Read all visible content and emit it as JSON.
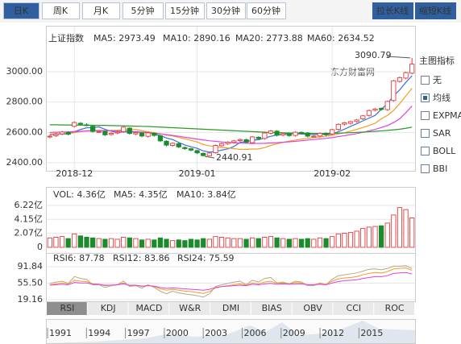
{
  "period_tabs": [
    "日K",
    "周K",
    "月K",
    "5分钟",
    "15分钟",
    "30分钟",
    "60分钟"
  ],
  "zoom_buttons": [
    "拉长K线",
    "缩短K线"
  ],
  "watermark": "东方财富网",
  "indicator_panel": {
    "title": "主图指标",
    "options": [
      "无",
      "均线",
      "EXPMA",
      "SAR",
      "BOLL",
      "BBI"
    ],
    "checked": [
      false,
      true,
      false,
      false,
      false,
      false
    ]
  },
  "indicator_tabs": [
    "RSI",
    "KDJ",
    "MACD",
    "W&R",
    "DMI",
    "BIAS",
    "OBV",
    "CCI",
    "ROC"
  ],
  "timeline_years": [
    "1991",
    "1994",
    "1997",
    "2000",
    "2003",
    "2006",
    "2009",
    "2012",
    "2015"
  ],
  "chart_data": [
    {
      "type": "candlestick",
      "title": "上证指数",
      "categories": [
        null,
        null,
        null,
        null,
        "2018-12",
        null,
        null,
        null,
        null,
        null,
        null,
        null,
        null,
        null,
        null,
        null,
        null,
        null,
        null,
        null,
        null,
        null,
        null,
        null,
        "2019-01",
        null,
        null,
        null,
        null,
        null,
        null,
        null,
        null,
        null,
        null,
        null,
        null,
        null,
        null,
        null,
        null,
        null,
        null,
        null,
        null,
        null,
        "2019-02",
        null,
        null,
        null,
        null,
        null,
        null,
        null,
        null,
        null,
        null,
        null,
        null,
        null
      ],
      "open": [
        2570,
        2578,
        2590,
        2600,
        2640,
        2660,
        2650,
        2640,
        2600,
        2606,
        2586,
        2596,
        2605,
        2628,
        2590,
        2596,
        2574,
        2595,
        2578,
        2542,
        2514,
        2526,
        2500,
        2492,
        2480,
        2462,
        2446,
        2466,
        2512,
        2526,
        2534,
        2546,
        2552,
        2532,
        2568,
        2560,
        2594,
        2608,
        2582,
        2590,
        2580,
        2600,
        2596,
        2572,
        2576,
        2594,
        2590,
        2620,
        2654,
        2660,
        2672,
        2690,
        2712,
        2746,
        2758,
        2750,
        2810,
        2936,
        2958,
        2990
      ],
      "high": [
        2583,
        2596,
        2610,
        2608,
        2672,
        2668,
        2660,
        2646,
        2612,
        2612,
        2600,
        2610,
        2640,
        2634,
        2604,
        2602,
        2604,
        2600,
        2584,
        2548,
        2534,
        2532,
        2506,
        2498,
        2486,
        2468,
        2470,
        2520,
        2532,
        2541,
        2550,
        2559,
        2558,
        2576,
        2574,
        2602,
        2616,
        2614,
        2597,
        2596,
        2607,
        2606,
        2602,
        2580,
        2600,
        2600,
        2624,
        2659,
        2669,
        2677,
        2688,
        2715,
        2750,
        2760,
        2764,
        2810,
        2946,
        2968,
        3000,
        3090.79
      ],
      "low": [
        2562,
        2570,
        2582,
        2580,
        2632,
        2646,
        2641,
        2598,
        2597,
        2576,
        2578,
        2588,
        2597,
        2585,
        2582,
        2568,
        2566,
        2572,
        2536,
        2508,
        2506,
        2496,
        2485,
        2475,
        2457,
        2440.91,
        2444,
        2460,
        2506,
        2518,
        2526,
        2538,
        2527,
        2524,
        2552,
        2552,
        2586,
        2573,
        2575,
        2571,
        2572,
        2588,
        2567,
        2567,
        2568,
        2576,
        2582,
        2612,
        2645,
        2652,
        2664,
        2682,
        2704,
        2738,
        2743,
        2742,
        2802,
        2928,
        2950,
        2982
      ],
      "close": [
        2575,
        2588,
        2602,
        2588,
        2665,
        2654,
        2649,
        2606,
        2605,
        2584,
        2594,
        2602,
        2634,
        2593,
        2598,
        2576,
        2597,
        2580,
        2544,
        2516,
        2528,
        2504,
        2493,
        2483,
        2465,
        2447,
        2464,
        2514,
        2526,
        2535,
        2544,
        2553,
        2535,
        2570,
        2559,
        2596,
        2610,
        2581,
        2591,
        2579,
        2601,
        2596,
        2575,
        2575,
        2594,
        2584,
        2618,
        2653,
        2663,
        2671,
        2682,
        2709,
        2744,
        2754,
        2751,
        2804,
        2940,
        2961,
        2994,
        3050
      ],
      "up_color": "#e4393c",
      "down_color": "#1a8c2d",
      "series": [
        {
          "name": "MA5: 2973.49",
          "color": "#3a6fd8",
          "values": [
            2585,
            2588,
            2590,
            2588,
            2604,
            2619,
            2630,
            2632,
            2636,
            2620,
            2608,
            2598,
            2604,
            2601,
            2604,
            2601,
            2600,
            2589,
            2579,
            2563,
            2553,
            2534,
            2517,
            2505,
            2495,
            2478,
            2470,
            2474,
            2483,
            2491,
            2507,
            2534,
            2539,
            2548,
            2552,
            2563,
            2574,
            2583,
            2587,
            2593,
            2592,
            2589,
            2588,
            2585,
            2588,
            2585,
            2589,
            2605,
            2621,
            2640,
            2657,
            2676,
            2694,
            2712,
            2752,
            2790,
            2840,
            2880,
            2930,
            2973.49
          ]
        },
        {
          "name": "MA10: 2890.16",
          "color": "#f0a020",
          "values": [
            2590,
            2591,
            2592,
            2592,
            2598,
            2605,
            2611,
            2612,
            2614,
            2612,
            2613,
            2614,
            2617,
            2616,
            2620,
            2611,
            2604,
            2598,
            2591,
            2582,
            2577,
            2567,
            2558,
            2547,
            2537,
            2520,
            2511,
            2505,
            2500,
            2497,
            2493,
            2488,
            2488,
            2490,
            2491,
            2500,
            2514,
            2525,
            2534,
            2542,
            2549,
            2556,
            2561,
            2566,
            2570,
            2574,
            2581,
            2590,
            2598,
            2608,
            2620,
            2632,
            2646,
            2660,
            2690,
            2712,
            2745,
            2790,
            2840,
            2890.16
          ]
        },
        {
          "name": "MA20: 2773.88",
          "color": "#e040e0",
          "values": [
            2600,
            2601,
            2602,
            2603,
            2605,
            2607,
            2609,
            2610,
            2611,
            2611,
            2610,
            2609,
            2608,
            2606,
            2604,
            2601,
            2598,
            2594,
            2590,
            2585,
            2580,
            2574,
            2568,
            2562,
            2556,
            2550,
            2545,
            2541,
            2537,
            2534,
            2531,
            2529,
            2528,
            2527,
            2527,
            2528,
            2530,
            2532,
            2535,
            2538,
            2541,
            2545,
            2549,
            2553,
            2557,
            2561,
            2566,
            2572,
            2578,
            2585,
            2592,
            2600,
            2610,
            2620,
            2632,
            2645,
            2665,
            2690,
            2730,
            2773.88
          ]
        },
        {
          "name": "MA60: 2634.52",
          "color": "#2a9a2a",
          "values": [
            2650,
            2650,
            2649,
            2649,
            2648,
            2648,
            2647,
            2647,
            2646,
            2646,
            2645,
            2644,
            2643,
            2642,
            2641,
            2640,
            2639,
            2637,
            2635,
            2633,
            2631,
            2629,
            2627,
            2625,
            2623,
            2621,
            2619,
            2617,
            2615,
            2613,
            2611,
            2609,
            2607,
            2605,
            2603,
            2601,
            2599,
            2598,
            2597,
            2596,
            2595,
            2594,
            2594,
            2593,
            2593,
            2593,
            2594,
            2595,
            2596,
            2598,
            2600,
            2602,
            2604,
            2607,
            2610,
            2613,
            2617,
            2621,
            2627,
            2634.52
          ]
        }
      ],
      "annotations": [
        "3090.79",
        "2440.91"
      ],
      "ylim": [
        2368,
        3170
      ],
      "yticks": [
        {
          "value": 2400,
          "label": "2400.00"
        },
        {
          "value": 2600,
          "label": "2600.00"
        },
        {
          "value": 2800,
          "label": "2800.00"
        },
        {
          "value": 3000,
          "label": "3000.00"
        }
      ],
      "grid": true
    },
    {
      "type": "bar",
      "legend": [
        "VOL: 4.36亿",
        "MA5: 4.35亿",
        "MA10: 3.84亿"
      ],
      "legend_colors": [
        "#e040e0",
        "#333333",
        "#e040e0"
      ],
      "values": [
        1.4,
        1.5,
        1.6,
        1.3,
        2.0,
        1.7,
        1.5,
        1.4,
        1.3,
        1.2,
        1.3,
        1.2,
        1.5,
        1.4,
        1.3,
        1.1,
        1.2,
        1.1,
        1.4,
        1.2,
        1.0,
        1.1,
        1.0,
        1.2,
        1.1,
        1.3,
        1.2,
        1.6,
        1.5,
        1.4,
        1.3,
        1.3,
        1.2,
        1.4,
        1.3,
        1.5,
        1.6,
        1.4,
        1.3,
        1.2,
        1.3,
        1.2,
        1.3,
        1.2,
        1.4,
        1.3,
        1.6,
        2.0,
        2.1,
        2.2,
        2.4,
        2.8,
        3.0,
        3.1,
        3.2,
        3.6,
        4.8,
        5.9,
        5.6,
        4.36
      ],
      "ylim": [
        0,
        8.01
      ],
      "yticks": [
        0,
        {
          "value": 2.07,
          "label": "2.07亿"
        },
        {
          "value": 4.15,
          "label": "4.15亿"
        },
        {
          "value": 6.22,
          "label": "6.22亿"
        }
      ],
      "grid": true
    },
    {
      "type": "line",
      "series": [
        {
          "name": "RSI6: 87.78",
          "color": "#b8a88a",
          "values": [
            55,
            58,
            60,
            55,
            70,
            66,
            64,
            52,
            52,
            46,
            50,
            52,
            60,
            48,
            50,
            44,
            52,
            46,
            38,
            32,
            38,
            34,
            32,
            30,
            28,
            25,
            32,
            48,
            52,
            55,
            58,
            60,
            52,
            62,
            58,
            66,
            68,
            56,
            58,
            54,
            60,
            58,
            50,
            50,
            56,
            52,
            64,
            72,
            74,
            76,
            78,
            82,
            86,
            87,
            85,
            88,
            93,
            93,
            94,
            87.78
          ]
        },
        {
          "name": "RSI12: 83.86",
          "color": "#f0a020",
          "values": [
            52,
            54,
            56,
            54,
            62,
            60,
            59,
            54,
            53,
            50,
            51,
            52,
            56,
            50,
            51,
            48,
            51,
            48,
            43,
            40,
            42,
            40,
            38,
            37,
            35,
            33,
            37,
            45,
            48,
            50,
            52,
            54,
            51,
            56,
            54,
            58,
            60,
            55,
            56,
            54,
            57,
            56,
            52,
            52,
            55,
            53,
            60,
            65,
            67,
            68,
            70,
            74,
            77,
            79,
            78,
            81,
            87,
            88,
            89,
            83.86
          ]
        },
        {
          "name": "RSI24: 75.59",
          "color": "#e040e0",
          "values": [
            51,
            52,
            53,
            52,
            57,
            56,
            56,
            53,
            53,
            51,
            51,
            52,
            54,
            51,
            51,
            49,
            50,
            49,
            46,
            44,
            45,
            44,
            43,
            42,
            41,
            40,
            42,
            46,
            48,
            49,
            50,
            51,
            50,
            53,
            52,
            54,
            55,
            53,
            54,
            53,
            54,
            54,
            52,
            52,
            53,
            52,
            56,
            59,
            61,
            62,
            63,
            66,
            68,
            70,
            70,
            72,
            77,
            78,
            79,
            75.59
          ]
        }
      ],
      "ylim": [
        12.07,
        114.9
      ],
      "yticks": [
        19.16,
        55.5,
        91.84
      ],
      "ytick_labels": [
        "19.16",
        "55.50",
        "91.84"
      ],
      "grid": true
    }
  ]
}
